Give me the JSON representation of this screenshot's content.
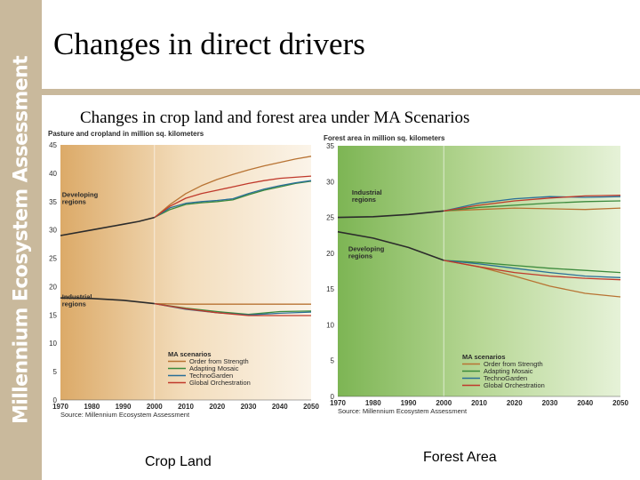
{
  "sidebar": {
    "brand": "Millennium Ecosystem Assessment"
  },
  "header": {
    "title": "Changes in direct drivers"
  },
  "subtitle": "Changes in crop land and forest area under MA Scenarios",
  "captions": {
    "left": "Crop Land",
    "right": "Forest Area"
  },
  "colors": {
    "Order from Strength": "#b87333",
    "Adapting Mosaic": "#3c8a3c",
    "TechnoGarden": "#2a6f97",
    "Global Orchestration": "#c0392b",
    "historical": "#2b2b2b"
  },
  "chart_data": [
    {
      "type": "line",
      "title": "Pasture and cropland in million sq. kilometers",
      "xlabel": "",
      "ylabel": "",
      "xlim": [
        1970,
        2050
      ],
      "ylim": [
        0,
        45
      ],
      "x_ticks": [
        "1970",
        "1980",
        "1990",
        "2000",
        "2010",
        "2020",
        "2030",
        "2040",
        "2050"
      ],
      "y_ticks": [
        "0",
        "5",
        "10",
        "15",
        "20",
        "25",
        "30",
        "35",
        "40",
        "45"
      ],
      "background": [
        "#dcaa68",
        "#f3ddbc",
        "#fbf4e9"
      ],
      "legend_title": "MA scenarios",
      "legend_position": "bottom-right",
      "source": "Source: Millennium Ecosystem Assessment",
      "annotations": [
        {
          "lines": [
            "Developing",
            "regions"
          ],
          "x": 1970.5,
          "y": 35.8
        },
        {
          "lines": [
            "Industrial",
            "regions"
          ],
          "x": 1970.5,
          "y": 17.8
        }
      ],
      "series": [
        {
          "name": "Developing regions (historical)",
          "legend": false,
          "color_key": "historical",
          "x": [
            1970,
            1980,
            1990,
            1995,
            2000
          ],
          "y": [
            29.0,
            30.0,
            31.0,
            31.5,
            32.2
          ]
        },
        {
          "name": "Order from Strength",
          "group": "Developing regions",
          "color_key": "Order from Strength",
          "x": [
            2000,
            2005,
            2010,
            2015,
            2020,
            2025,
            2030,
            2035,
            2040,
            2045,
            2050
          ],
          "y": [
            32.2,
            34.5,
            36.4,
            37.8,
            38.9,
            39.8,
            40.6,
            41.3,
            41.9,
            42.5,
            43.0
          ]
        },
        {
          "name": "Adapting Mosaic",
          "group": "Developing regions",
          "color_key": "Adapting Mosaic",
          "x": [
            2000,
            2005,
            2010,
            2015,
            2020,
            2025,
            2030,
            2035,
            2040,
            2045,
            2050
          ],
          "y": [
            32.2,
            33.6,
            34.5,
            34.8,
            35.0,
            35.3,
            36.2,
            37.0,
            37.6,
            38.2,
            38.6
          ]
        },
        {
          "name": "TechnoGarden",
          "group": "Developing regions",
          "color_key": "TechnoGarden",
          "x": [
            2000,
            2005,
            2010,
            2015,
            2020,
            2025,
            2030,
            2035,
            2040,
            2045,
            2050
          ],
          "y": [
            32.2,
            33.9,
            34.7,
            35.0,
            35.2,
            35.5,
            36.4,
            37.2,
            37.8,
            38.3,
            38.7
          ]
        },
        {
          "name": "Global Orchestration",
          "group": "Developing regions",
          "color_key": "Global Orchestration",
          "x": [
            2000,
            2005,
            2010,
            2015,
            2020,
            2025,
            2030,
            2035,
            2040,
            2045,
            2050
          ],
          "y": [
            32.2,
            34.2,
            35.6,
            36.4,
            37.0,
            37.6,
            38.2,
            38.7,
            39.1,
            39.3,
            39.5
          ]
        },
        {
          "name": "Industrial regions (historical)",
          "legend": false,
          "color_key": "historical",
          "x": [
            1970,
            1980,
            1990,
            2000
          ],
          "y": [
            18.0,
            17.9,
            17.6,
            17.0
          ]
        },
        {
          "name": "Order from Strength",
          "group": "Industrial regions",
          "color_key": "Order from Strength",
          "x": [
            2000,
            2010,
            2020,
            2030,
            2040,
            2050
          ],
          "y": [
            17.0,
            16.9,
            16.9,
            16.9,
            16.9,
            16.9
          ]
        },
        {
          "name": "Adapting Mosaic",
          "group": "Industrial regions",
          "color_key": "Adapting Mosaic",
          "x": [
            2000,
            2010,
            2020,
            2030,
            2040,
            2050
          ],
          "y": [
            17.0,
            16.2,
            15.6,
            15.1,
            15.6,
            15.7
          ]
        },
        {
          "name": "TechnoGarden",
          "group": "Industrial regions",
          "color_key": "TechnoGarden",
          "x": [
            2000,
            2010,
            2020,
            2030,
            2040,
            2050
          ],
          "y": [
            17.0,
            16.0,
            15.4,
            15.0,
            15.3,
            15.5
          ]
        },
        {
          "name": "Global Orchestration",
          "group": "Industrial regions",
          "color_key": "Global Orchestration",
          "x": [
            2000,
            2010,
            2020,
            2030,
            2040,
            2050
          ],
          "y": [
            17.0,
            16.1,
            15.4,
            14.9,
            14.9,
            14.9
          ]
        }
      ]
    },
    {
      "type": "line",
      "title": "Forest area in million sq. kilometers",
      "xlabel": "",
      "ylabel": "",
      "xlim": [
        1970,
        2050
      ],
      "ylim": [
        0,
        35
      ],
      "x_ticks": [
        "1970",
        "1980",
        "1990",
        "2000",
        "2010",
        "2020",
        "2030",
        "2040",
        "2050"
      ],
      "y_ticks": [
        "0",
        "5",
        "10",
        "15",
        "20",
        "25",
        "30",
        "35"
      ],
      "background": [
        "#7db554",
        "#b7d795",
        "#e6f2d8"
      ],
      "legend_title": "MA scenarios",
      "legend_position": "bottom-right",
      "source": "Source: Millennium Ecosystem Assessment",
      "annotations": [
        {
          "lines": [
            "Industrial",
            "regions"
          ],
          "x": 1974,
          "y": 28.2
        },
        {
          "lines": [
            "Developing",
            "regions"
          ],
          "x": 1973,
          "y": 20.3
        }
      ],
      "series": [
        {
          "name": "Industrial regions (historical)",
          "legend": false,
          "color_key": "historical",
          "x": [
            1970,
            1980,
            1990,
            2000
          ],
          "y": [
            25.0,
            25.1,
            25.4,
            25.9
          ]
        },
        {
          "name": "Order from Strength",
          "group": "Industrial regions",
          "color_key": "Order from Strength",
          "x": [
            2000,
            2010,
            2020,
            2030,
            2040,
            2050
          ],
          "y": [
            25.9,
            26.1,
            26.3,
            26.2,
            26.1,
            26.3
          ]
        },
        {
          "name": "Adapting Mosaic",
          "group": "Industrial regions",
          "color_key": "Adapting Mosaic",
          "x": [
            2000,
            2010,
            2020,
            2030,
            2040,
            2050
          ],
          "y": [
            25.9,
            26.4,
            26.7,
            27.0,
            27.2,
            27.3
          ]
        },
        {
          "name": "TechnoGarden",
          "group": "Industrial regions",
          "color_key": "TechnoGarden",
          "x": [
            2000,
            2010,
            2020,
            2030,
            2040,
            2050
          ],
          "y": [
            25.9,
            27.0,
            27.6,
            27.9,
            27.8,
            27.9
          ]
        },
        {
          "name": "Global Orchestration",
          "group": "Industrial regions",
          "color_key": "Global Orchestration",
          "x": [
            2000,
            2010,
            2020,
            2030,
            2040,
            2050
          ],
          "y": [
            25.9,
            26.7,
            27.3,
            27.7,
            28.0,
            28.1
          ]
        },
        {
          "name": "Developing regions (historical)",
          "legend": false,
          "color_key": "historical",
          "x": [
            1970,
            1980,
            1990,
            2000
          ],
          "y": [
            23.0,
            22.1,
            20.8,
            19.0
          ]
        },
        {
          "name": "Order from Strength",
          "group": "Developing regions",
          "color_key": "Order from Strength",
          "x": [
            2000,
            2010,
            2020,
            2030,
            2040,
            2050
          ],
          "y": [
            19.0,
            18.1,
            16.8,
            15.4,
            14.4,
            13.9
          ]
        },
        {
          "name": "Adapting Mosaic",
          "group": "Developing regions",
          "color_key": "Adapting Mosaic",
          "x": [
            2000,
            2010,
            2020,
            2030,
            2040,
            2050
          ],
          "y": [
            19.0,
            18.7,
            18.3,
            17.9,
            17.6,
            17.3
          ]
        },
        {
          "name": "TechnoGarden",
          "group": "Developing regions",
          "color_key": "TechnoGarden",
          "x": [
            2000,
            2010,
            2020,
            2030,
            2040,
            2050
          ],
          "y": [
            19.0,
            18.5,
            17.9,
            17.3,
            16.8,
            16.6
          ]
        },
        {
          "name": "Global Orchestration",
          "group": "Developing regions",
          "color_key": "Global Orchestration",
          "x": [
            2000,
            2010,
            2020,
            2030,
            2040,
            2050
          ],
          "y": [
            19.0,
            18.1,
            17.3,
            16.8,
            16.5,
            16.3
          ]
        }
      ]
    }
  ]
}
